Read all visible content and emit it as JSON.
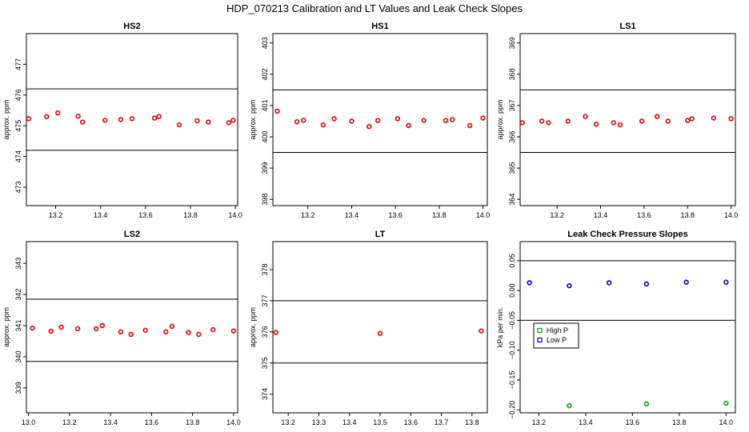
{
  "figure": {
    "title": "HDP_070213  Calibration and LT Values and Leak Check Slopes"
  },
  "colors": {
    "calibration_points": "#e00000",
    "high_p": "#00b000",
    "low_p": "#0000cc",
    "frame": "#000000"
  },
  "chart_data": [
    {
      "id": "hs2",
      "type": "scatter",
      "title": "HS2",
      "ylabel": "approx. ppm",
      "xlim": [
        13.07,
        14.01
      ],
      "ylim": [
        472.4,
        478.0
      ],
      "xticks": [
        13.2,
        13.4,
        13.6,
        13.8,
        14.0
      ],
      "xtick_labels": [
        "13.2",
        "13.4",
        "13.6",
        "13.8",
        "14.0"
      ],
      "yticks": [
        473,
        474,
        475,
        476,
        477
      ],
      "ytick_labels": [
        "473",
        "474",
        "475",
        "476",
        "477"
      ],
      "hlines": [
        476.2,
        474.2
      ],
      "series": [
        {
          "color": "#e00000",
          "marker": "circle",
          "x": [
            13.08,
            13.16,
            13.21,
            13.3,
            13.32,
            13.42,
            13.49,
            13.54,
            13.64,
            13.66,
            13.75,
            13.83,
            13.88,
            13.97,
            13.99
          ],
          "y": [
            475.23,
            475.3,
            475.42,
            475.31,
            475.12,
            475.18,
            475.2,
            475.23,
            475.25,
            475.3,
            475.03,
            475.16,
            475.12,
            475.1,
            475.18
          ]
        }
      ]
    },
    {
      "id": "hs1",
      "type": "scatter",
      "title": "HS1",
      "ylabel": "approx. ppm",
      "xlim": [
        13.04,
        14.02
      ],
      "ylim": [
        397.8,
        403.3
      ],
      "xticks": [
        13.2,
        13.4,
        13.6,
        13.8,
        14.0
      ],
      "xtick_labels": [
        "13.2",
        "13.4",
        "13.6",
        "13.8",
        "14.0"
      ],
      "yticks": [
        398,
        399,
        400,
        401,
        402,
        403
      ],
      "ytick_labels": [
        "398",
        "399",
        "400",
        "401",
        "402",
        "403"
      ],
      "hlines": [
        401.5,
        399.5
      ],
      "series": [
        {
          "color": "#e00000",
          "marker": "circle",
          "x": [
            13.06,
            13.15,
            13.18,
            13.27,
            13.32,
            13.4,
            13.48,
            13.52,
            13.61,
            13.66,
            13.73,
            13.83,
            13.86,
            13.94,
            14.0
          ],
          "y": [
            400.82,
            400.48,
            400.53,
            400.38,
            400.58,
            400.5,
            400.33,
            400.52,
            400.58,
            400.36,
            400.52,
            400.52,
            400.55,
            400.36,
            400.6
          ]
        }
      ]
    },
    {
      "id": "ls1",
      "type": "scatter",
      "title": "LS1",
      "ylabel": "approx. ppm",
      "xlim": [
        13.03,
        14.02
      ],
      "ylim": [
        363.8,
        369.3
      ],
      "xticks": [
        13.2,
        13.4,
        13.6,
        13.8,
        14.0
      ],
      "xtick_labels": [
        "13.2",
        "13.4",
        "13.6",
        "13.8",
        "14.0"
      ],
      "yticks": [
        364,
        365,
        366,
        367,
        368,
        369
      ],
      "ytick_labels": [
        "364",
        "365",
        "366",
        "367",
        "368",
        "369"
      ],
      "hlines": [
        367.5,
        365.5
      ],
      "series": [
        {
          "color": "#e00000",
          "marker": "circle",
          "x": [
            13.04,
            13.13,
            13.16,
            13.25,
            13.33,
            13.38,
            13.46,
            13.49,
            13.59,
            13.66,
            13.71,
            13.8,
            13.82,
            13.92,
            14.0
          ],
          "y": [
            366.45,
            366.5,
            366.45,
            366.5,
            366.65,
            366.4,
            366.45,
            366.38,
            366.5,
            366.65,
            366.5,
            366.52,
            366.58,
            366.6,
            366.58
          ]
        }
      ]
    },
    {
      "id": "ls2",
      "type": "scatter",
      "title": "LS2",
      "ylabel": "approx. ppm",
      "xlim": [
        12.99,
        14.02
      ],
      "ylim": [
        338.2,
        343.7
      ],
      "xticks": [
        13.0,
        13.2,
        13.4,
        13.6,
        13.8,
        14.0
      ],
      "xtick_labels": [
        "13.0",
        "13.2",
        "13.4",
        "13.6",
        "13.8",
        "14.0"
      ],
      "yticks": [
        339,
        340,
        341,
        342,
        343
      ],
      "ytick_labels": [
        "339",
        "340",
        "341",
        "342",
        "343"
      ],
      "hlines": [
        341.85,
        339.85
      ],
      "series": [
        {
          "color": "#e00000",
          "marker": "circle",
          "x": [
            13.02,
            13.11,
            13.16,
            13.24,
            13.33,
            13.36,
            13.45,
            13.5,
            13.57,
            13.67,
            13.7,
            13.78,
            13.83,
            13.9,
            14.0
          ],
          "y": [
            340.92,
            340.82,
            340.95,
            340.9,
            340.9,
            341.0,
            340.8,
            340.72,
            340.85,
            340.8,
            340.98,
            340.78,
            340.72,
            340.87,
            340.83
          ]
        }
      ]
    },
    {
      "id": "lt",
      "type": "scatter",
      "title": "LT",
      "ylabel": "approx. ppm",
      "xlim": [
        13.15,
        13.85
      ],
      "ylim": [
        373.4,
        378.9
      ],
      "xticks": [
        13.2,
        13.3,
        13.4,
        13.5,
        13.6,
        13.7,
        13.8
      ],
      "xtick_labels": [
        "13.2",
        "13.3",
        "13.4",
        "13.5",
        "13.6",
        "13.7",
        "13.8"
      ],
      "yticks": [
        374,
        375,
        376,
        377,
        378
      ],
      "ytick_labels": [
        "374",
        "375",
        "376",
        "377",
        "378"
      ],
      "hlines": [
        377.0,
        375.0
      ],
      "series": [
        {
          "color": "#e00000",
          "marker": "circle",
          "x": [
            13.16,
            13.5,
            13.83
          ],
          "y": [
            375.98,
            375.95,
            376.03
          ]
        }
      ]
    },
    {
      "id": "leak",
      "type": "scatter",
      "title": "Leak Check Pressure Slopes",
      "ylabel": "kPa per min.",
      "xlim": [
        13.12,
        14.04
      ],
      "ylim": [
        -0.205,
        0.082
      ],
      "xticks": [
        13.2,
        13.4,
        13.6,
        13.8,
        14.0
      ],
      "xtick_labels": [
        "13.2",
        "13.4",
        "13.6",
        "13.8",
        "14.0"
      ],
      "yticks": [
        0.05,
        0.0,
        -0.05,
        -0.1,
        -0.15,
        -0.2
      ],
      "ytick_labels": [
        "0.05",
        "0.00",
        "−0.05",
        "−0.10",
        "−0.15",
        "−0.20"
      ],
      "hlines": [
        0.05,
        -0.05
      ],
      "legend": {
        "position": "middle-left",
        "entries": [
          "High P",
          "Low P"
        ]
      },
      "series": [
        {
          "name": "High P",
          "color": "#00b000",
          "marker": "circle",
          "x": [
            13.33,
            13.66,
            14.0
          ],
          "y": [
            -0.193,
            -0.19,
            -0.189
          ]
        },
        {
          "name": "Low P",
          "color": "#0000cc",
          "marker": "circle",
          "x": [
            13.16,
            13.33,
            13.5,
            13.66,
            13.83,
            14.0
          ],
          "y": [
            0.013,
            0.008,
            0.013,
            0.011,
            0.014,
            0.014
          ]
        }
      ]
    }
  ]
}
